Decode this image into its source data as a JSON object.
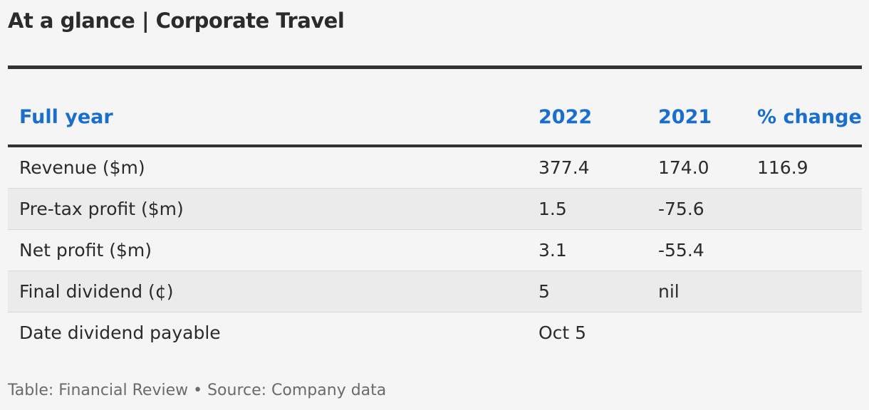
{
  "title": "At a glance | Corporate Travel",
  "chart_data": {
    "type": "table",
    "columns": [
      "Full year",
      "2022",
      "2021",
      "% change"
    ],
    "rows": [
      [
        "Revenue ($m)",
        "377.4",
        "174.0",
        "116.9"
      ],
      [
        "Pre-tax profit ($m)",
        "1.5",
        "-75.6",
        ""
      ],
      [
        "Net profit ($m)",
        "3.1",
        "-55.4",
        ""
      ],
      [
        "Final dividend (¢)",
        "5",
        "nil",
        ""
      ],
      [
        "Date dividend payable",
        "Oct 5",
        "",
        ""
      ]
    ]
  },
  "footer": "Table: Financial Review • Source: Company data",
  "colors": {
    "header_text": "#1a6fcc",
    "rule": "#333333",
    "background": "#f5f5f5",
    "stripe": "#ebebeb"
  }
}
